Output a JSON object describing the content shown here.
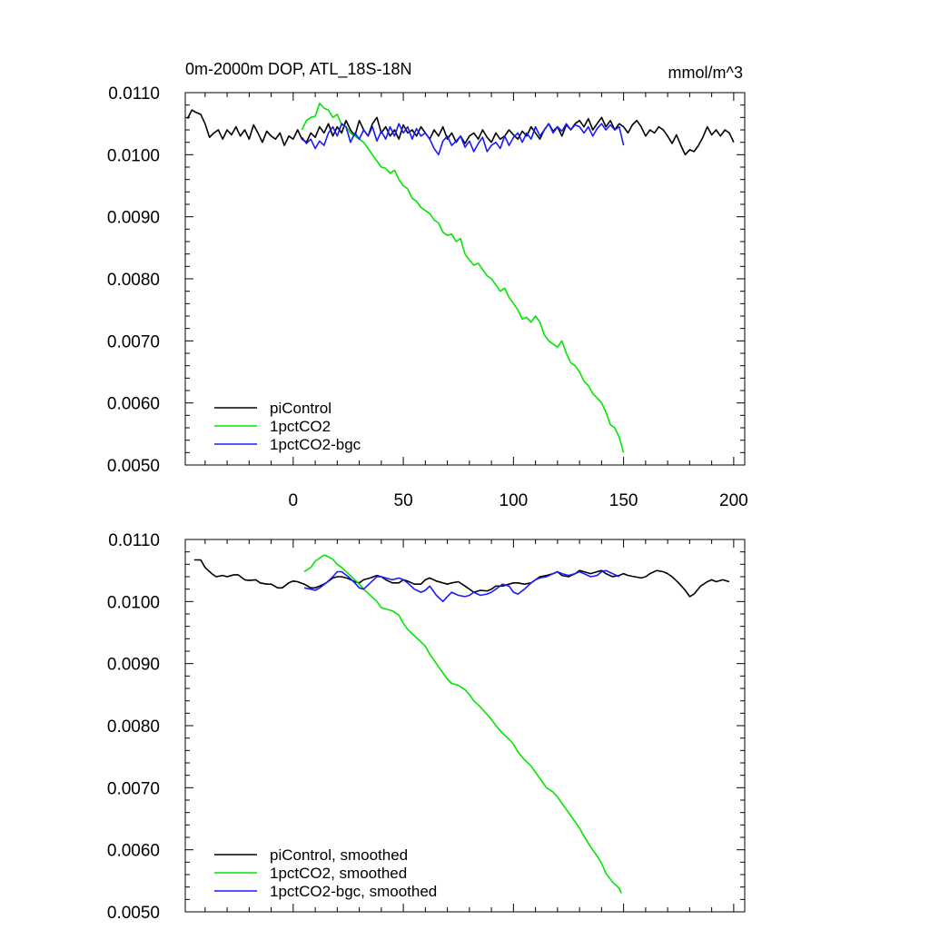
{
  "chart_data": [
    {
      "type": "line",
      "title": "0m-2000m DOP, ATL_18S-18N",
      "units_label": "mmol/m^3",
      "xlim": [
        -49,
        205
      ],
      "ylim": [
        0.005,
        0.011
      ],
      "x_ticks": [
        "0",
        "50",
        "100",
        "150",
        "200"
      ],
      "y_ticks": [
        "0.0110",
        "0.0100",
        "0.0090",
        "0.0080",
        "0.0070",
        "0.0060",
        "0.0050"
      ],
      "legend_position": "bottom-left",
      "series": [
        {
          "name": "piControl",
          "color": "#000000",
          "x": [
            -48,
            -46,
            -44,
            -42,
            -40,
            -38,
            -36,
            -34,
            -32,
            -30,
            -28,
            -26,
            -24,
            -22,
            -20,
            -18,
            -16,
            -14,
            -12,
            -10,
            -8,
            -6,
            -4,
            -2,
            0,
            2,
            4,
            6,
            8,
            10,
            12,
            14,
            16,
            18,
            20,
            22,
            24,
            26,
            28,
            30,
            32,
            34,
            36,
            38,
            40,
            42,
            44,
            46,
            48,
            50,
            52,
            54,
            56,
            58,
            60,
            62,
            64,
            66,
            68,
            70,
            72,
            74,
            76,
            78,
            80,
            82,
            84,
            86,
            88,
            90,
            92,
            94,
            96,
            98,
            100,
            102,
            104,
            106,
            108,
            110,
            112,
            114,
            116,
            118,
            120,
            122,
            124,
            126,
            128,
            130,
            132,
            134,
            136,
            138,
            140,
            142,
            144,
            146,
            148,
            150,
            152,
            154,
            156,
            158,
            160,
            162,
            164,
            166,
            168,
            170,
            172,
            174,
            176,
            178,
            180,
            182,
            184,
            186,
            188,
            190,
            192,
            194,
            196,
            198,
            200
          ],
          "values": [
            0.01058,
            0.01072,
            0.01068,
            0.01065,
            0.0105,
            0.01028,
            0.01035,
            0.0104,
            0.01025,
            0.0104,
            0.01032,
            0.01045,
            0.0103,
            0.0104,
            0.01025,
            0.01048,
            0.01035,
            0.0102,
            0.01038,
            0.0103,
            0.01025,
            0.01035,
            0.01015,
            0.0103,
            0.01025,
            0.0104,
            0.01025,
            0.0102,
            0.01035,
            0.01028,
            0.01045,
            0.01035,
            0.0105,
            0.0103,
            0.01045,
            0.01035,
            0.01055,
            0.0104,
            0.0103,
            0.01055,
            0.0104,
            0.0103,
            0.0105,
            0.0106,
            0.01035,
            0.01045,
            0.0103,
            0.0104,
            0.01025,
            0.01048,
            0.01035,
            0.0104,
            0.0103,
            0.01045,
            0.01035,
            0.01025,
            0.0104,
            0.0103,
            0.01045,
            0.01025,
            0.01035,
            0.0102,
            0.0103,
            0.01018,
            0.0103,
            0.01035,
            0.01025,
            0.0104,
            0.01028,
            0.0102,
            0.01035,
            0.01025,
            0.0103,
            0.0104,
            0.01032,
            0.01025,
            0.01038,
            0.0103,
            0.01045,
            0.01035,
            0.01025,
            0.0104,
            0.0105,
            0.01038,
            0.01045,
            0.0103,
            0.01048,
            0.0104,
            0.0105,
            0.01055,
            0.01045,
            0.01058,
            0.0104,
            0.0105,
            0.0106,
            0.01045,
            0.01055,
            0.0104,
            0.0105,
            0.01045,
            0.01035,
            0.01048,
            0.01055,
            0.01045,
            0.0103,
            0.0104,
            0.01035,
            0.01045,
            0.0104,
            0.0103,
            0.01018,
            0.01032,
            0.01015,
            0.01,
            0.01008,
            0.01005,
            0.01015,
            0.01028,
            0.01045,
            0.01032,
            0.0104,
            0.0103,
            0.0104,
            0.01035,
            0.0102
          ]
        },
        {
          "name": "1pctCO2",
          "color": "#00e600",
          "x": [
            4,
            6,
            8,
            10,
            12,
            14,
            16,
            18,
            20,
            22,
            24,
            26,
            28,
            30,
            32,
            34,
            36,
            38,
            40,
            42,
            44,
            46,
            48,
            50,
            52,
            54,
            56,
            58,
            60,
            62,
            64,
            66,
            68,
            70,
            72,
            74,
            76,
            78,
            80,
            82,
            84,
            86,
            88,
            90,
            92,
            94,
            96,
            98,
            100,
            102,
            104,
            106,
            108,
            110,
            112,
            114,
            116,
            118,
            120,
            122,
            124,
            126,
            128,
            130,
            132,
            134,
            136,
            138,
            140,
            142,
            144,
            146,
            148,
            150
          ],
          "values": [
            0.0104,
            0.01055,
            0.0106,
            0.01062,
            0.01083,
            0.01075,
            0.01072,
            0.0106,
            0.01065,
            0.01048,
            0.01045,
            0.01035,
            0.0103,
            0.01025,
            0.0102,
            0.0101,
            0.01,
            0.0099,
            0.0098,
            0.00978,
            0.0097,
            0.00975,
            0.0096,
            0.0095,
            0.00945,
            0.0093,
            0.00925,
            0.00915,
            0.0091,
            0.00905,
            0.00895,
            0.0089,
            0.00875,
            0.0087,
            0.00872,
            0.0086,
            0.00865,
            0.0084,
            0.0083,
            0.00822,
            0.00825,
            0.00815,
            0.00805,
            0.008,
            0.0079,
            0.0078,
            0.00785,
            0.0077,
            0.0076,
            0.0075,
            0.00735,
            0.00738,
            0.0073,
            0.0074,
            0.0073,
            0.0071,
            0.007,
            0.00695,
            0.0069,
            0.007,
            0.0068,
            0.00665,
            0.0066,
            0.0065,
            0.00635,
            0.00628,
            0.00615,
            0.00608,
            0.006,
            0.00585,
            0.00565,
            0.0056,
            0.00545,
            0.0052
          ]
        },
        {
          "name": "1pctCO2-bgc",
          "color": "#1a1aff",
          "x": [
            4,
            6,
            8,
            10,
            12,
            14,
            16,
            18,
            20,
            22,
            24,
            26,
            28,
            30,
            32,
            34,
            36,
            38,
            40,
            42,
            44,
            46,
            48,
            50,
            52,
            54,
            56,
            58,
            60,
            62,
            64,
            66,
            68,
            70,
            72,
            74,
            76,
            78,
            80,
            82,
            84,
            86,
            88,
            90,
            92,
            94,
            96,
            98,
            100,
            102,
            104,
            106,
            108,
            110,
            112,
            114,
            116,
            118,
            120,
            122,
            124,
            126,
            128,
            130,
            132,
            134,
            136,
            138,
            140,
            142,
            144,
            146,
            148,
            150
          ],
          "values": [
            0.01028,
            0.01018,
            0.01025,
            0.0101,
            0.01022,
            0.01015,
            0.01035,
            0.01045,
            0.0103,
            0.0105,
            0.01045,
            0.0102,
            0.01035,
            0.01025,
            0.0104,
            0.0103,
            0.01045,
            0.01022,
            0.01038,
            0.01025,
            0.01045,
            0.0103,
            0.0105,
            0.01035,
            0.01045,
            0.01025,
            0.01042,
            0.0103,
            0.01035,
            0.01025,
            0.0101,
            0.01,
            0.01022,
            0.0103,
            0.01015,
            0.01022,
            0.0103,
            0.01012,
            0.01022,
            0.01005,
            0.01018,
            0.01028,
            0.01005,
            0.01015,
            0.0102,
            0.0101,
            0.0103,
            0.01015,
            0.01028,
            0.01035,
            0.0102,
            0.01035,
            0.01025,
            0.01045,
            0.0103,
            0.0104,
            0.0105,
            0.01035,
            0.01045,
            0.01038,
            0.0105,
            0.0104,
            0.01048,
            0.01045,
            0.01035,
            0.01045,
            0.0103,
            0.01042,
            0.0105,
            0.0104,
            0.01048,
            0.0104,
            0.01045,
            0.01015
          ]
        }
      ]
    },
    {
      "type": "line",
      "xlim": [
        -49,
        205
      ],
      "ylim": [
        0.005,
        0.011
      ],
      "y_ticks": [
        "0.0110",
        "0.0100",
        "0.0090",
        "0.0080",
        "0.0070",
        "0.0060",
        "0.0050"
      ],
      "legend_position": "bottom-left",
      "series": [
        {
          "name": "piControl, smoothed",
          "color": "#000000",
          "x": [
            -45,
            -42,
            -40,
            -37,
            -35,
            -32,
            -30,
            -27,
            -25,
            -22,
            -20,
            -17,
            -15,
            -12,
            -10,
            -7,
            -5,
            -2,
            0,
            2,
            5,
            8,
            10,
            12,
            15,
            18,
            20,
            22,
            25,
            28,
            30,
            32,
            35,
            38,
            40,
            42,
            45,
            48,
            50,
            52,
            55,
            58,
            60,
            62,
            65,
            68,
            70,
            72,
            75,
            78,
            80,
            82,
            85,
            88,
            90,
            92,
            95,
            98,
            100,
            102,
            105,
            108,
            110,
            112,
            115,
            118,
            120,
            122,
            125,
            128,
            130,
            132,
            135,
            138,
            140,
            142,
            145,
            148,
            150,
            152,
            155,
            158,
            160,
            162,
            165,
            168,
            170,
            172,
            175,
            178,
            180,
            182,
            185,
            188,
            190,
            192,
            195,
            198
          ],
          "values": [
            0.01067,
            0.01067,
            0.01055,
            0.01045,
            0.0104,
            0.01042,
            0.0104,
            0.01043,
            0.01043,
            0.01035,
            0.01034,
            0.01035,
            0.0103,
            0.01028,
            0.01028,
            0.01022,
            0.01022,
            0.0103,
            0.01033,
            0.01032,
            0.01028,
            0.01022,
            0.01022,
            0.01025,
            0.0103,
            0.01038,
            0.0104,
            0.0104,
            0.01037,
            0.01032,
            0.0103,
            0.01035,
            0.01038,
            0.01042,
            0.0104,
            0.01035,
            0.0103,
            0.0103,
            0.01035,
            0.01033,
            0.01028,
            0.01028,
            0.01035,
            0.01038,
            0.01033,
            0.0103,
            0.01028,
            0.0103,
            0.01032,
            0.01025,
            0.0102,
            0.01015,
            0.01018,
            0.01017,
            0.0102,
            0.01025,
            0.01025,
            0.01028,
            0.0103,
            0.0103,
            0.01028,
            0.0103,
            0.01035,
            0.0104,
            0.01042,
            0.01045,
            0.01048,
            0.01042,
            0.0104,
            0.01045,
            0.0105,
            0.01048,
            0.01045,
            0.01048,
            0.0105,
            0.01045,
            0.0104,
            0.01042,
            0.01045,
            0.01042,
            0.0104,
            0.01038,
            0.0104,
            0.01045,
            0.0105,
            0.01048,
            0.01045,
            0.0104,
            0.0103,
            0.01018,
            0.01008,
            0.01012,
            0.01025,
            0.01032,
            0.01035,
            0.01032,
            0.01035,
            0.01032
          ]
        },
        {
          "name": "1pctCO2, smoothed",
          "color": "#00e600",
          "x": [
            5,
            8,
            10,
            12,
            14,
            16,
            18,
            20,
            22,
            25,
            28,
            30,
            32,
            35,
            38,
            40,
            42,
            45,
            48,
            50,
            52,
            55,
            58,
            60,
            62,
            65,
            68,
            70,
            72,
            75,
            78,
            80,
            82,
            85,
            88,
            90,
            92,
            95,
            98,
            100,
            102,
            105,
            108,
            110,
            112,
            115,
            118,
            120,
            122,
            125,
            128,
            130,
            132,
            135,
            138,
            140,
            142,
            145,
            148,
            149
          ],
          "values": [
            0.01048,
            0.01055,
            0.01065,
            0.0107,
            0.01075,
            0.01072,
            0.01068,
            0.0106,
            0.01055,
            0.01045,
            0.01035,
            0.01028,
            0.0102,
            0.0101,
            0.01,
            0.0099,
            0.00988,
            0.00985,
            0.00978,
            0.00965,
            0.00955,
            0.00945,
            0.00935,
            0.00928,
            0.00915,
            0.009,
            0.00885,
            0.00875,
            0.00868,
            0.00865,
            0.00858,
            0.0085,
            0.0084,
            0.0083,
            0.00818,
            0.0081,
            0.008,
            0.00788,
            0.00778,
            0.0077,
            0.00758,
            0.00745,
            0.00735,
            0.00725,
            0.00715,
            0.007,
            0.00693,
            0.00685,
            0.00675,
            0.0066,
            0.00645,
            0.00635,
            0.00622,
            0.00605,
            0.0059,
            0.00578,
            0.00562,
            0.00548,
            0.00538,
            0.0053
          ]
        },
        {
          "name": "1pctCO2-bgc, smoothed",
          "color": "#1a1aff",
          "x": [
            5,
            8,
            10,
            12,
            15,
            18,
            20,
            22,
            25,
            28,
            30,
            32,
            35,
            38,
            40,
            42,
            45,
            48,
            50,
            52,
            55,
            58,
            60,
            62,
            65,
            68,
            70,
            72,
            75,
            78,
            80,
            82,
            85,
            88,
            90,
            92,
            95,
            98,
            100,
            102,
            105,
            108,
            110,
            112,
            115,
            118,
            120,
            122,
            125,
            128,
            130,
            132,
            135,
            138,
            140,
            142,
            145,
            148
          ],
          "values": [
            0.01022,
            0.0102,
            0.01018,
            0.01022,
            0.0103,
            0.0104,
            0.01048,
            0.01048,
            0.0104,
            0.0103,
            0.01022,
            0.0102,
            0.0103,
            0.0104,
            0.0104,
            0.01038,
            0.01035,
            0.01038,
            0.01035,
            0.0103,
            0.0102,
            0.01015,
            0.01018,
            0.01025,
            0.0101,
            0.01,
            0.01008,
            0.01015,
            0.0101,
            0.01008,
            0.0101,
            0.01015,
            0.0101,
            0.01012,
            0.01015,
            0.0102,
            0.01028,
            0.01025,
            0.01015,
            0.01012,
            0.0102,
            0.0103,
            0.01035,
            0.01038,
            0.0104,
            0.01045,
            0.01048,
            0.01045,
            0.01042,
            0.01045,
            0.01048,
            0.01045,
            0.0104,
            0.01042,
            0.01048,
            0.0105,
            0.01045,
            0.0104
          ]
        }
      ]
    }
  ]
}
